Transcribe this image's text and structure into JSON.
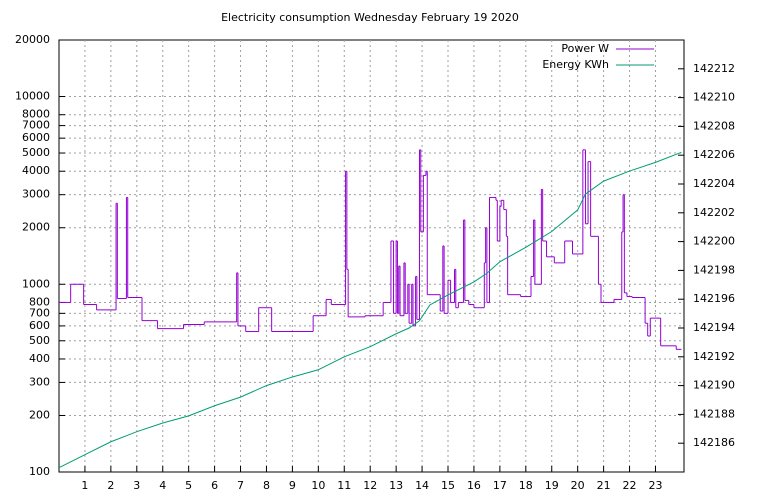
{
  "chart_data": {
    "type": "line",
    "title": "Electricity consumption Wednesday February 19 2020",
    "log_y": true,
    "grid": true,
    "legend": "top-right",
    "xlim": [
      0,
      24.1
    ],
    "xticks": [
      1,
      2,
      3,
      4,
      5,
      6,
      7,
      8,
      9,
      10,
      11,
      12,
      13,
      14,
      15,
      16,
      17,
      18,
      19,
      20,
      21,
      22,
      23
    ],
    "ylim": [
      100,
      20000
    ],
    "yticks": [
      100,
      200,
      300,
      400,
      500,
      600,
      700,
      800,
      1000,
      2000,
      3000,
      4000,
      5000,
      6000,
      7000,
      8000,
      10000,
      20000
    ],
    "y2lim": [
      142184,
      142214
    ],
    "y2ticks": [
      142186,
      142188,
      142190,
      142192,
      142194,
      142196,
      142198,
      142200,
      142202,
      142204,
      142206,
      142208,
      142210,
      142212
    ],
    "series": [
      {
        "name": "Power W",
        "color": "#9400d3",
        "step": true,
        "x": [
          0,
          0.45,
          0.95,
          1.45,
          2.2,
          2.25,
          2.6,
          2.65,
          3.2,
          3.8,
          4.8,
          5.6,
          6.85,
          6.9,
          7.2,
          7.7,
          8.2,
          9.8,
          10.3,
          10.5,
          11.05,
          11.1,
          11.15,
          11.8,
          12.5,
          12.8,
          12.9,
          13.0,
          13.05,
          13.1,
          13.15,
          13.3,
          13.35,
          13.45,
          13.5,
          13.6,
          13.65,
          13.75,
          13.8,
          13.9,
          13.95,
          14.05,
          14.15,
          14.2,
          14.7,
          14.8,
          14.85,
          15.0,
          15.1,
          15.25,
          15.3,
          15.4,
          15.6,
          15.65,
          15.8,
          16.0,
          16.4,
          16.45,
          16.5,
          16.6,
          16.85,
          16.9,
          17.0,
          17.05,
          17.15,
          17.25,
          17.3,
          17.8,
          18.2,
          18.3,
          18.35,
          18.6,
          18.65,
          18.8,
          19.1,
          19.5,
          19.8,
          20.2,
          20.3,
          20.4,
          20.5,
          20.8,
          20.9,
          21.4,
          21.7,
          21.75,
          21.8,
          21.9,
          22.1,
          22.6,
          22.7,
          22.8,
          23.2,
          23.8,
          24.0
        ],
        "values": [
          800,
          1000,
          780,
          730,
          2700,
          840,
          2900,
          850,
          640,
          580,
          610,
          630,
          1150,
          600,
          560,
          750,
          560,
          680,
          830,
          780,
          4000,
          1200,
          670,
          680,
          800,
          1700,
          700,
          1700,
          700,
          1250,
          680,
          1300,
          700,
          1000,
          620,
          1000,
          600,
          1100,
          650,
          5200,
          1900,
          3800,
          4000,
          880,
          720,
          1600,
          700,
          1050,
          800,
          1200,
          750,
          800,
          2200,
          820,
          780,
          750,
          1300,
          2000,
          800,
          2900,
          2800,
          1700,
          2600,
          2800,
          2500,
          1800,
          880,
          860,
          1100,
          2200,
          1000,
          3200,
          1700,
          1400,
          1300,
          1700,
          1450,
          5200,
          2100,
          4500,
          1800,
          1000,
          800,
          830,
          1900,
          3000,
          900,
          860,
          850,
          620,
          530,
          660,
          470,
          450,
          450
        ]
      },
      {
        "name": "Energy KWh",
        "color": "#009e73",
        "axis": "y2",
        "x": [
          0,
          1,
          2,
          3,
          4,
          5,
          6,
          7,
          8,
          9,
          10,
          11,
          12,
          13,
          13.5,
          13.9,
          14.3,
          15,
          16,
          16.5,
          17,
          18,
          19,
          20,
          20.3,
          21,
          22,
          23,
          24
        ],
        "values": [
          142184.3,
          142185.2,
          142186.1,
          142186.8,
          142187.4,
          142187.9,
          142188.6,
          142189.2,
          142190.0,
          142190.6,
          142191.1,
          142192.0,
          142192.7,
          142193.6,
          142194.0,
          142194.5,
          142195.6,
          142196.3,
          142197.2,
          142197.8,
          142198.6,
          142199.6,
          142200.7,
          142202.2,
          142203.3,
          142204.2,
          142204.9,
          142205.5,
          142206.2
        ]
      }
    ]
  }
}
